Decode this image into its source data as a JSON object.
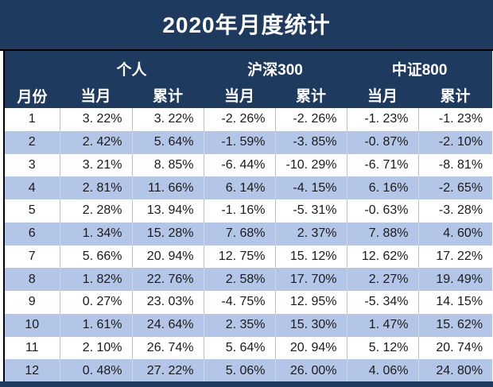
{
  "title": "2020年月度统计",
  "colors": {
    "header_navy": "#1F3A5F",
    "stripe_blue": "#B4C6E7",
    "grid_gray": "#BFBFBF",
    "divider_black": "#000000",
    "header_text": "#FFFFFF",
    "data_text": "#1A1A1A"
  },
  "table": {
    "month_header": "月份",
    "groups": [
      {
        "label": "个人",
        "sub": [
          "当月",
          "累计"
        ]
      },
      {
        "label": "沪深300",
        "sub": [
          "当月",
          "累计"
        ]
      },
      {
        "label": "中证800",
        "sub": [
          "当月",
          "累计"
        ]
      }
    ],
    "display_rows": [
      {
        "month": "1",
        "cells": [
          "3. 22%",
          "3. 22%",
          "-2. 26%",
          "-2. 26%",
          "-1. 23%",
          "-1. 23%"
        ]
      },
      {
        "month": "2",
        "cells": [
          "2. 42%",
          "5. 64%",
          "-1. 59%",
          "-3. 85%",
          "-0. 87%",
          "-2. 10%"
        ]
      },
      {
        "month": "3",
        "cells": [
          "3. 21%",
          "8. 85%",
          "-6. 44%",
          "-10. 29%",
          "-6. 71%",
          "-8. 81%"
        ]
      },
      {
        "month": "4",
        "cells": [
          "2. 81%",
          "11. 66%",
          "6. 14%",
          "-4. 15%",
          "6. 16%",
          "-2. 65%"
        ]
      },
      {
        "month": "5",
        "cells": [
          "2. 28%",
          "13. 94%",
          "-1. 16%",
          "-5. 31%",
          "-0. 63%",
          "-3. 28%"
        ]
      },
      {
        "month": "6",
        "cells": [
          "1. 34%",
          "15. 28%",
          "7. 68%",
          "2. 37%",
          "7. 88%",
          "4. 60%"
        ]
      },
      {
        "month": "7",
        "cells": [
          "5. 66%",
          "20. 94%",
          "12. 75%",
          "15. 12%",
          "12. 62%",
          "17. 22%"
        ]
      },
      {
        "month": "8",
        "cells": [
          "1. 82%",
          "22. 76%",
          "2. 58%",
          "17. 70%",
          "2. 27%",
          "19. 49%"
        ]
      },
      {
        "month": "9",
        "cells": [
          "0. 27%",
          "23. 03%",
          "-4. 75%",
          "12. 95%",
          "-5. 34%",
          "14. 15%"
        ]
      },
      {
        "month": "10",
        "cells": [
          "1. 61%",
          "24. 64%",
          "2. 35%",
          "15. 30%",
          "1. 47%",
          "15. 62%"
        ]
      },
      {
        "month": "11",
        "cells": [
          "2. 10%",
          "26. 74%",
          "5. 64%",
          "20. 94%",
          "5. 12%",
          "20. 74%"
        ]
      },
      {
        "month": "12",
        "cells": [
          "0. 48%",
          "27. 22%",
          "5. 06%",
          "26. 00%",
          "4. 06%",
          "24. 80%"
        ]
      }
    ]
  },
  "chart_data": {
    "type": "table",
    "title": "2020年月度统计",
    "columns": [
      "月份",
      "个人 当月",
      "个人 累计",
      "沪深300 当月",
      "沪深300 累计",
      "中证800 当月",
      "中证800 累计"
    ],
    "unit": "percent",
    "rows": [
      [
        1,
        3.22,
        3.22,
        -2.26,
        -2.26,
        -1.23,
        -1.23
      ],
      [
        2,
        2.42,
        5.64,
        -1.59,
        -3.85,
        -0.87,
        -2.1
      ],
      [
        3,
        3.21,
        8.85,
        -6.44,
        -10.29,
        -6.71,
        -8.81
      ],
      [
        4,
        2.81,
        11.66,
        6.14,
        -4.15,
        6.16,
        -2.65
      ],
      [
        5,
        2.28,
        13.94,
        -1.16,
        -5.31,
        -0.63,
        -3.28
      ],
      [
        6,
        1.34,
        15.28,
        7.68,
        2.37,
        7.88,
        4.6
      ],
      [
        7,
        5.66,
        20.94,
        12.75,
        15.12,
        12.62,
        17.22
      ],
      [
        8,
        1.82,
        22.76,
        2.58,
        17.7,
        2.27,
        19.49
      ],
      [
        9,
        0.27,
        23.03,
        -4.75,
        12.95,
        -5.34,
        14.15
      ],
      [
        10,
        1.61,
        24.64,
        2.35,
        15.3,
        1.47,
        15.62
      ],
      [
        11,
        2.1,
        26.74,
        5.64,
        20.94,
        5.12,
        20.74
      ],
      [
        12,
        0.48,
        27.22,
        5.06,
        26.0,
        4.06,
        24.8
      ]
    ]
  }
}
